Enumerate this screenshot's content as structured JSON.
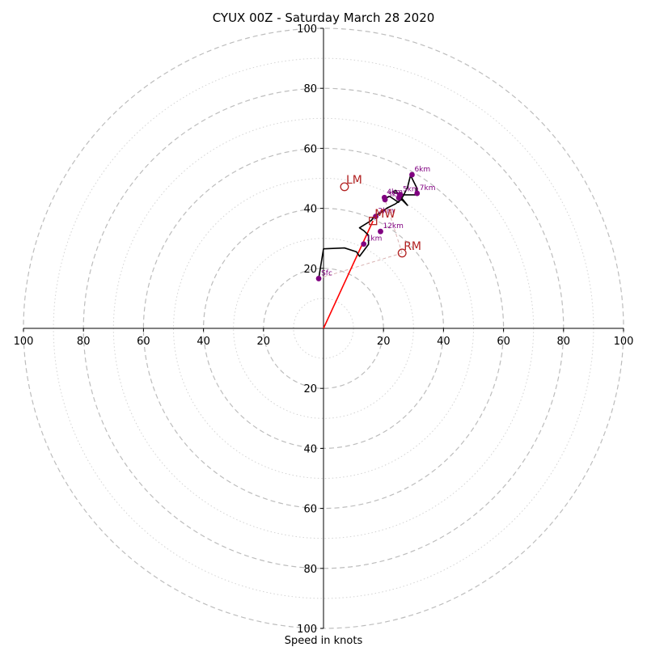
{
  "chart_data": {
    "type": "scatter",
    "title": "CYUX 00Z - Saturday March 28 2020",
    "xlabel": "Speed in knots",
    "xlim": [
      -100,
      100
    ],
    "ylim": [
      -100,
      100
    ],
    "ring_major": [
      20,
      40,
      60,
      80,
      100
    ],
    "ring_minor": [
      10,
      30,
      50,
      70,
      90
    ],
    "x_ticks": [
      "100",
      "80",
      "60",
      "40",
      "20",
      "20",
      "40",
      "60",
      "80",
      "100"
    ],
    "x_tick_values": [
      -100,
      -80,
      -60,
      -40,
      -20,
      20,
      40,
      60,
      80,
      100
    ],
    "y_ticks": [
      "100",
      "80",
      "60",
      "40",
      "20",
      "20",
      "40",
      "60",
      "80",
      "100"
    ],
    "y_tick_values": [
      100,
      80,
      60,
      40,
      20,
      -20,
      -40,
      -60,
      -80,
      -100
    ],
    "hodograph": {
      "u": [
        -1.6,
        0,
        7,
        11,
        12,
        15,
        15,
        13.5,
        12,
        16,
        17,
        19,
        21,
        24,
        26,
        28,
        24,
        23,
        25,
        27,
        29,
        31,
        31,
        29,
        28,
        26.5,
        25,
        22,
        20
      ],
      "v": [
        16.6,
        26.5,
        26.8,
        25.5,
        24,
        28,
        31,
        32.5,
        33.5,
        36,
        37.5,
        38.5,
        40,
        41.5,
        43,
        41,
        46,
        45.5,
        44.8,
        44.5,
        44.5,
        44.5,
        47,
        51,
        47,
        44,
        42,
        44,
        43
      ]
    },
    "levels": [
      {
        "label": "Sfc",
        "u": -1.6,
        "v": 16.6
      },
      {
        "label": "1km",
        "u": 13.4,
        "v": 28.1
      },
      {
        "label": "12km",
        "u": 19.0,
        "v": 32.3
      },
      {
        "label": "2km",
        "u": 17.4,
        "v": 37.3
      },
      {
        "label": "3km",
        "u": 20.5,
        "v": 42.9
      },
      {
        "label": "4km",
        "u": 20.3,
        "v": 43.6
      },
      {
        "label": "5km",
        "u": 25.6,
        "v": 44.6
      },
      {
        "label": "7km",
        "u": 31.2,
        "v": 45.0
      },
      {
        "label": "6km",
        "u": 29.5,
        "v": 51.2
      },
      {
        "label": "",
        "u": 25.1,
        "v": 43.5
      }
    ],
    "storm_motion": [
      {
        "label": "LM",
        "u": 7.0,
        "v": 47.2
      },
      {
        "label": "RM",
        "u": 26.2,
        "v": 25.1
      },
      {
        "label": "MW",
        "u": 16.5,
        "v": 35.8
      }
    ],
    "mean_vector": {
      "u": 16.5,
      "v": 35.8
    },
    "colors": {
      "hodograph": "#000000",
      "levels": "#800080",
      "storm_motion": "#b22222",
      "mean_vector": "#ff0000",
      "grid": "#bdbdbd"
    },
    "grid": true,
    "legend": "none"
  }
}
